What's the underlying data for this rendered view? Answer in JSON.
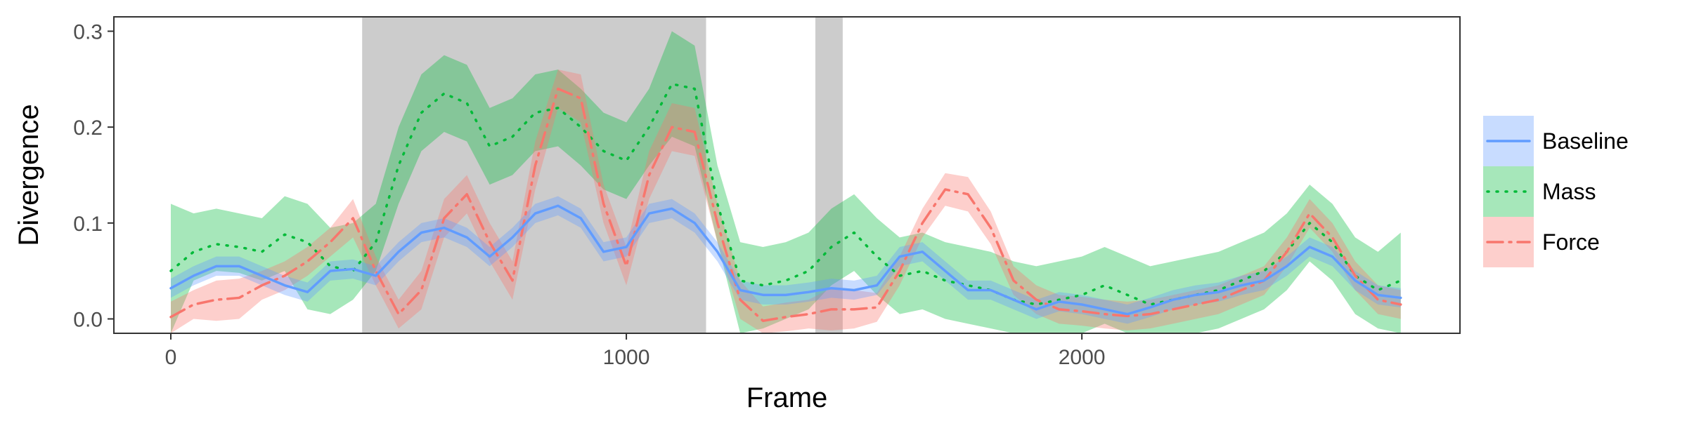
{
  "chart_data": {
    "type": "line",
    "xlabel": "Frame",
    "ylabel": "Divergence",
    "xlim": [
      -125,
      2830
    ],
    "ylim": [
      -0.015,
      0.315
    ],
    "xticks": [
      0,
      1000,
      2000
    ],
    "yticks": [
      0.0,
      0.1,
      0.2,
      0.3
    ],
    "ytick_labels": [
      "0.0",
      "0.1",
      "0.2",
      "0.3"
    ],
    "grid": false,
    "legend_position": "right",
    "shaded_regions": [
      [
        420,
        1175
      ],
      [
        1415,
        1475
      ]
    ],
    "shaded_color": "#cccccc",
    "x": [
      0,
      50,
      100,
      150,
      200,
      250,
      300,
      350,
      400,
      450,
      500,
      550,
      600,
      650,
      700,
      750,
      800,
      850,
      900,
      950,
      1000,
      1050,
      1100,
      1150,
      1200,
      1250,
      1300,
      1350,
      1400,
      1450,
      1500,
      1550,
      1600,
      1650,
      1700,
      1750,
      1800,
      1850,
      1900,
      1950,
      2000,
      2050,
      2100,
      2150,
      2200,
      2250,
      2300,
      2350,
      2400,
      2450,
      2500,
      2550,
      2600,
      2650,
      2700
    ],
    "series": [
      {
        "name": "Baseline",
        "color": "#619cff",
        "dash": "solid",
        "values": [
          0.032,
          0.045,
          0.055,
          0.055,
          0.045,
          0.035,
          0.028,
          0.05,
          0.052,
          0.045,
          0.07,
          0.09,
          0.095,
          0.085,
          0.065,
          0.085,
          0.11,
          0.118,
          0.105,
          0.07,
          0.075,
          0.11,
          0.115,
          0.1,
          0.07,
          0.03,
          0.025,
          0.025,
          0.028,
          0.032,
          0.03,
          0.035,
          0.065,
          0.07,
          0.05,
          0.03,
          0.03,
          0.02,
          0.01,
          0.018,
          0.015,
          0.01,
          0.005,
          0.012,
          0.02,
          0.025,
          0.028,
          0.035,
          0.04,
          0.055,
          0.075,
          0.065,
          0.04,
          0.025,
          0.022
        ],
        "lower": [
          0.022,
          0.035,
          0.045,
          0.045,
          0.035,
          0.025,
          0.018,
          0.04,
          0.042,
          0.035,
          0.06,
          0.08,
          0.085,
          0.075,
          0.055,
          0.075,
          0.1,
          0.108,
          0.095,
          0.06,
          0.065,
          0.1,
          0.105,
          0.09,
          0.06,
          0.02,
          0.015,
          0.015,
          0.018,
          0.022,
          0.02,
          0.025,
          0.055,
          0.06,
          0.04,
          0.02,
          0.02,
          0.01,
          0.0,
          0.008,
          0.005,
          0.0,
          -0.005,
          0.002,
          0.01,
          0.015,
          0.018,
          0.025,
          0.03,
          0.045,
          0.065,
          0.055,
          0.03,
          0.015,
          0.012
        ],
        "upper": [
          0.042,
          0.055,
          0.065,
          0.065,
          0.055,
          0.045,
          0.038,
          0.06,
          0.062,
          0.055,
          0.08,
          0.1,
          0.105,
          0.095,
          0.075,
          0.095,
          0.12,
          0.128,
          0.115,
          0.08,
          0.085,
          0.12,
          0.125,
          0.11,
          0.08,
          0.04,
          0.035,
          0.035,
          0.038,
          0.042,
          0.04,
          0.045,
          0.075,
          0.08,
          0.06,
          0.04,
          0.04,
          0.03,
          0.02,
          0.028,
          0.025,
          0.02,
          0.015,
          0.022,
          0.03,
          0.035,
          0.038,
          0.045,
          0.05,
          0.065,
          0.085,
          0.075,
          0.05,
          0.035,
          0.032
        ]
      },
      {
        "name": "Mass",
        "color": "#00ba38",
        "dash": "dotted",
        "values": [
          0.05,
          0.07,
          0.078,
          0.075,
          0.07,
          0.088,
          0.08,
          0.055,
          0.05,
          0.08,
          0.16,
          0.215,
          0.235,
          0.225,
          0.18,
          0.19,
          0.215,
          0.22,
          0.2,
          0.175,
          0.165,
          0.2,
          0.245,
          0.24,
          0.12,
          0.04,
          0.035,
          0.04,
          0.05,
          0.075,
          0.09,
          0.065,
          0.045,
          0.05,
          0.04,
          0.035,
          0.03,
          0.02,
          0.015,
          0.02,
          0.025,
          0.035,
          0.025,
          0.015,
          0.02,
          0.025,
          0.03,
          0.04,
          0.05,
          0.07,
          0.1,
          0.08,
          0.045,
          0.03,
          0.04
        ],
        "lower": [
          -0.015,
          0.04,
          0.05,
          0.048,
          0.04,
          0.05,
          0.01,
          0.005,
          0.02,
          0.05,
          0.12,
          0.175,
          0.195,
          0.185,
          0.14,
          0.15,
          0.175,
          0.18,
          0.16,
          0.135,
          0.125,
          0.16,
          0.19,
          0.18,
          0.08,
          -0.015,
          -0.01,
          0.0,
          0.01,
          0.035,
          0.05,
          0.025,
          0.005,
          0.01,
          0.0,
          -0.005,
          -0.01,
          -0.02,
          -0.025,
          -0.02,
          -0.015,
          -0.005,
          -0.015,
          -0.025,
          -0.02,
          -0.015,
          -0.01,
          0.0,
          0.01,
          0.03,
          0.06,
          0.04,
          0.005,
          -0.01,
          -0.015
        ],
        "upper": [
          0.12,
          0.11,
          0.115,
          0.11,
          0.105,
          0.128,
          0.12,
          0.095,
          0.1,
          0.12,
          0.2,
          0.255,
          0.275,
          0.265,
          0.22,
          0.23,
          0.255,
          0.26,
          0.24,
          0.215,
          0.205,
          0.24,
          0.3,
          0.285,
          0.16,
          0.08,
          0.075,
          0.08,
          0.09,
          0.115,
          0.13,
          0.105,
          0.085,
          0.09,
          0.08,
          0.075,
          0.07,
          0.06,
          0.055,
          0.06,
          0.065,
          0.075,
          0.065,
          0.055,
          0.06,
          0.065,
          0.07,
          0.08,
          0.09,
          0.11,
          0.14,
          0.12,
          0.085,
          0.07,
          0.09
        ]
      },
      {
        "name": "Force",
        "color": "#f8766d",
        "dash": "dashdot",
        "values": [
          0.002,
          0.015,
          0.02,
          0.022,
          0.035,
          0.045,
          0.06,
          0.08,
          0.105,
          0.05,
          0.005,
          0.03,
          0.105,
          0.13,
          0.08,
          0.04,
          0.16,
          0.24,
          0.23,
          0.12,
          0.055,
          0.15,
          0.2,
          0.195,
          0.1,
          0.02,
          -0.002,
          0.002,
          0.005,
          0.01,
          0.01,
          0.012,
          0.05,
          0.1,
          0.135,
          0.13,
          0.095,
          0.04,
          0.02,
          0.01,
          0.008,
          0.005,
          0.003,
          0.005,
          0.01,
          0.015,
          0.02,
          0.03,
          0.04,
          0.07,
          0.11,
          0.085,
          0.045,
          0.02,
          0.015
        ],
        "lower": [
          -0.015,
          0.0,
          -0.002,
          0.0,
          0.02,
          0.03,
          0.045,
          0.065,
          0.085,
          0.035,
          -0.01,
          0.01,
          0.085,
          0.11,
          0.06,
          0.02,
          0.135,
          0.22,
          0.205,
          0.1,
          0.035,
          0.125,
          0.175,
          0.17,
          0.08,
          0.0,
          -0.015,
          -0.013,
          -0.01,
          -0.012,
          -0.01,
          -0.003,
          0.035,
          0.085,
          0.118,
          0.112,
          0.078,
          0.025,
          0.005,
          -0.005,
          -0.007,
          -0.01,
          -0.012,
          -0.01,
          -0.005,
          0.0,
          0.005,
          0.015,
          0.025,
          0.055,
          0.095,
          0.07,
          0.03,
          0.005,
          0.0
        ],
        "upper": [
          0.018,
          0.03,
          0.04,
          0.042,
          0.05,
          0.06,
          0.075,
          0.095,
          0.125,
          0.065,
          0.02,
          0.05,
          0.125,
          0.15,
          0.1,
          0.06,
          0.185,
          0.26,
          0.255,
          0.14,
          0.075,
          0.175,
          0.225,
          0.22,
          0.12,
          0.04,
          0.013,
          0.017,
          0.02,
          0.032,
          0.03,
          0.027,
          0.065,
          0.115,
          0.152,
          0.148,
          0.112,
          0.055,
          0.035,
          0.025,
          0.023,
          0.02,
          0.018,
          0.02,
          0.025,
          0.03,
          0.035,
          0.045,
          0.055,
          0.085,
          0.125,
          0.1,
          0.06,
          0.035,
          0.03
        ]
      }
    ]
  }
}
